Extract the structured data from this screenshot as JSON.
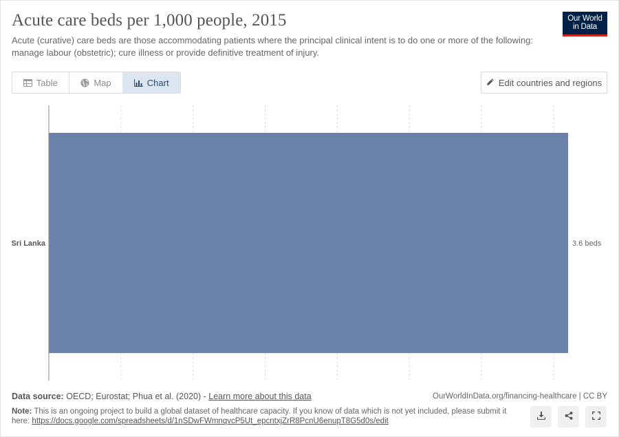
{
  "header": {
    "title": "Acute care beds per 1,000 people, 2015",
    "subtitle": "Acute (curative) care beds are those accommodating patients where the principal clinical intent is to do one or more of the following: manage labour (obstetric); cure illness or provide definitive treatment of injury.",
    "logo_line1": "Our World",
    "logo_line2": "in Data"
  },
  "tabs": [
    {
      "label": "Table",
      "icon": "table-icon",
      "active": false
    },
    {
      "label": "Map",
      "icon": "globe-icon",
      "active": false
    },
    {
      "label": "Chart",
      "icon": "bar-chart-icon",
      "active": true
    }
  ],
  "edit_button": {
    "label": "Edit countries and regions",
    "icon": "pencil-icon"
  },
  "chart_data": {
    "type": "bar",
    "orientation": "horizontal",
    "categories": [
      "Sri Lanka"
    ],
    "values": [
      3.6
    ],
    "value_labels": [
      "3.6 beds"
    ],
    "unit": "beds",
    "xlim": [
      0,
      3.6
    ],
    "grid": true,
    "bar_color": "#6a81aa"
  },
  "footer": {
    "source_label": "Data source:",
    "source_text": "OECD; Eurostat; Phua et al. (2020) -",
    "source_link": "Learn more about this data",
    "site_url": "OurWorldInData.org/financing-healthcare | CC BY",
    "note_label": "Note:",
    "note_text": "This is an ongoing project to build a global dataset of healthcare capacity. If you know of data which is not yet included, please submit it here:",
    "note_link": "https://docs.google.com/spreadsheets/d/1nSDwFWmnqvcP5Ut_epcntxjZrR8PcnU6enupT8G5d0s/edit"
  },
  "colors": {
    "brand_navy": "#002147",
    "brand_red": "#ce261e",
    "active_tab": "#dbe5f0"
  }
}
